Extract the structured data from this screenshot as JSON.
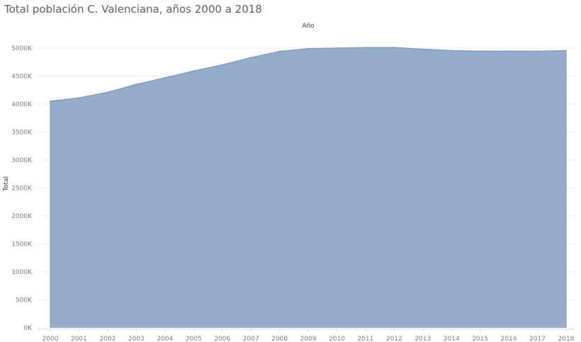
{
  "title": "Total población C. Valenciana, años 2000 a 2018",
  "chart_data": {
    "type": "area",
    "title": "Total población C. Valenciana, años 2000 a 2018",
    "column_header": "Año",
    "xlabel": "",
    "ylabel": "Total",
    "x": [
      2000,
      2001,
      2002,
      2003,
      2004,
      2005,
      2006,
      2007,
      2008,
      2009,
      2010,
      2011,
      2012,
      2013,
      2014,
      2015,
      2016,
      2017,
      2018
    ],
    "x_tick_labels": [
      "2000",
      "2001",
      "2002",
      "2003",
      "2004",
      "2005",
      "2006",
      "2007",
      "2008",
      "2009",
      "2010",
      "2011",
      "2012",
      "2013",
      "2014",
      "2015",
      "2016",
      "2017",
      "2018"
    ],
    "series": [
      {
        "name": "Total",
        "values": [
          4050,
          4110,
          4210,
          4350,
          4470,
          4590,
          4700,
          4830,
          4940,
          4990,
          5000,
          5010,
          5010,
          4980,
          4955,
          4945,
          4945,
          4945,
          4955
        ]
      }
    ],
    "y_unit": "K",
    "ylim": [
      0,
      5100
    ],
    "y_ticks": [
      0,
      500,
      1000,
      1500,
      2000,
      2500,
      3000,
      3500,
      4000,
      4500,
      5000
    ],
    "y_tick_labels": [
      "0K",
      "500K",
      "1000K",
      "1500K",
      "2000K",
      "2500K",
      "3000K",
      "3500K",
      "4000K",
      "4500K",
      "5000K"
    ],
    "grid": true,
    "legend": "none",
    "colors": {
      "fill": "#8fa9c8",
      "stroke": "#6f8fb4",
      "grid": "#eeeeee",
      "axis_text": "#777777"
    }
  }
}
